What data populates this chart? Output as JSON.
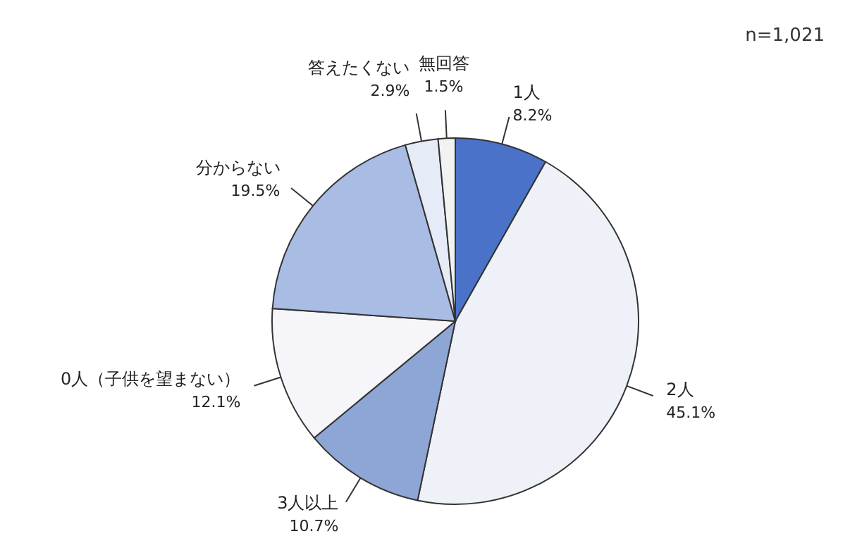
{
  "chart_data": {
    "type": "pie",
    "categories": [
      "1人",
      "2人",
      "3人以上",
      "0人（子供を望まない）",
      "分からない",
      "答えたくない",
      "無回答"
    ],
    "values": [
      8.2,
      45.1,
      10.7,
      12.1,
      19.5,
      2.9,
      1.5
    ],
    "colors": [
      "#4a72c8",
      "#eef1f7",
      "#8ea6d6",
      "#f6f6fa",
      "#a8bce4",
      "#e6ecf7",
      "#f2f2f2"
    ],
    "value_labels": [
      "8.2%",
      "45.1%",
      "10.7%",
      "12.1%",
      "19.5%",
      "2.9%",
      "1.5%"
    ],
    "annotations": [
      "n=1,021"
    ]
  }
}
